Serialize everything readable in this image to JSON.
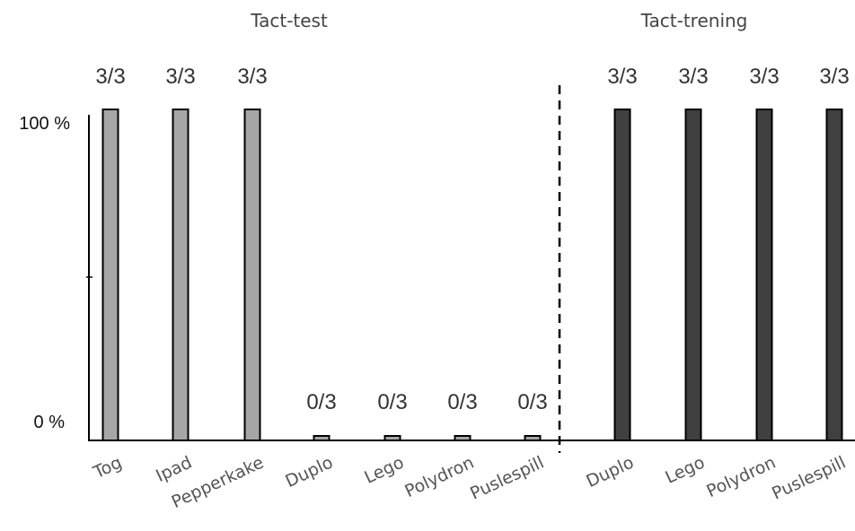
{
  "chart_data": {
    "type": "bar",
    "sections": [
      {
        "title": "Tact-test",
        "color": "#a6a6a6"
      },
      {
        "title": "Tact-trening",
        "color": "#404040"
      }
    ],
    "categories": [
      "Tog",
      "Ipad",
      "Pepperkake",
      "Duplo",
      "Lego",
      "Polydron",
      "Puslespill",
      "Duplo",
      "Lego",
      "Polydron",
      "Puslespill"
    ],
    "values": [
      100,
      100,
      100,
      0,
      0,
      0,
      0,
      100,
      100,
      100,
      100
    ],
    "data_labels": [
      "3/3",
      "3/3",
      "3/3",
      "0/3",
      "0/3",
      "0/3",
      "0/3",
      "3/3",
      "3/3",
      "3/3",
      "3/3"
    ],
    "section_index": [
      0,
      0,
      0,
      0,
      0,
      0,
      0,
      1,
      1,
      1,
      1
    ],
    "yticks": [
      "0 %",
      "100 %"
    ],
    "ylim": [
      0,
      100
    ],
    "phase_change_line": "dashed vertical line between Tact-test and Tact-trening",
    "grid": false,
    "legend": "none"
  }
}
